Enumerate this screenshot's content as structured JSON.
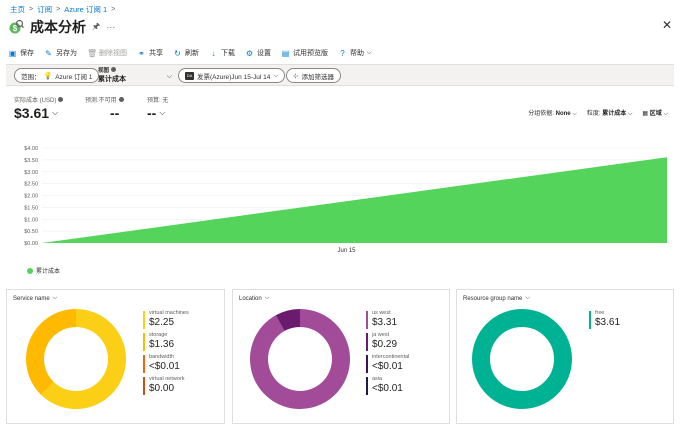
{
  "breadcrumb": [
    "主页",
    "订阅",
    "Azure 订阅 1"
  ],
  "title": "成本分析",
  "toolbar": [
    {
      "icon": "save-icon",
      "label": "保存",
      "enabled": true
    },
    {
      "icon": "save-as-icon",
      "label": "另存为",
      "enabled": true
    },
    {
      "icon": "delete-icon",
      "label": "删除视图",
      "enabled": false
    },
    {
      "icon": "share-icon",
      "label": "共享",
      "enabled": true
    },
    {
      "icon": "refresh-icon",
      "label": "刷新",
      "enabled": true
    },
    {
      "icon": "download-icon",
      "label": "下载",
      "enabled": true
    },
    {
      "icon": "gear-icon",
      "label": "设置",
      "enabled": true
    },
    {
      "icon": "preview-icon",
      "label": "试用预览版",
      "enabled": true
    },
    {
      "icon": "help-icon",
      "label": "帮助",
      "enabled": true
    }
  ],
  "filters": {
    "scope_label": "范围：",
    "scope_value": "Azure 订阅 1",
    "view_label": "视图",
    "view_value": "累计成本",
    "date_badge": "DA",
    "date_value": "发票(Azure)Jun 15-Jul 14",
    "add_filter": "添加筛选器"
  },
  "metrics": {
    "actual_label": "实际成本 (USD)",
    "actual_value": "$3.61",
    "forecast_label": "预测:不可用",
    "forecast_value": "--",
    "budget_label": "预算: 无",
    "budget_value": "--"
  },
  "controls": {
    "group_label": "分组依据:",
    "group_value": "None",
    "granularity_label": "粒度:",
    "granularity_value": "累计成本",
    "chart_type": "区域"
  },
  "chart_data": {
    "type": "area",
    "x_tick": "Jun 15",
    "y_ticks": [
      "$4.00",
      "$3.50",
      "$3.00",
      "$2.50",
      "$2.00",
      "$1.50",
      "$1.00",
      "$0.50",
      "$0.00"
    ],
    "ylim": [
      0,
      4
    ],
    "start_value": 0,
    "end_value": 3.61,
    "series": [
      {
        "name": "累计成本",
        "color": "#54d45a"
      }
    ]
  },
  "cards": [
    {
      "title": "Service name",
      "slices": [
        {
          "name": "virtual machines",
          "value": "$2.25",
          "amount": 2.25,
          "color": "#fccf17"
        },
        {
          "name": "storage",
          "value": "$1.36",
          "amount": 1.36,
          "color": "#ffb900"
        },
        {
          "name": "bandwidth",
          "value": "<$0.01",
          "amount": 0,
          "color": "#f7630c"
        },
        {
          "name": "virtual network",
          "value": "$0.00",
          "amount": 0,
          "color": "#ca5010"
        }
      ]
    },
    {
      "title": "Location",
      "slices": [
        {
          "name": "us west",
          "value": "$3.31",
          "amount": 3.31,
          "color": "#a24c99"
        },
        {
          "name": "ja west",
          "value": "$0.29",
          "amount": 0.29,
          "color": "#6b1b6e"
        },
        {
          "name": "intercontinental",
          "value": "<$0.01",
          "amount": 0,
          "color": "#3c1257"
        },
        {
          "name": "asia",
          "value": "<$0.01",
          "amount": 0,
          "color": "#1e1a4d"
        }
      ]
    },
    {
      "title": "Resource group name",
      "slices": [
        {
          "name": "free",
          "value": "$3.61",
          "amount": 3.61,
          "color": "#00b294"
        }
      ]
    }
  ]
}
